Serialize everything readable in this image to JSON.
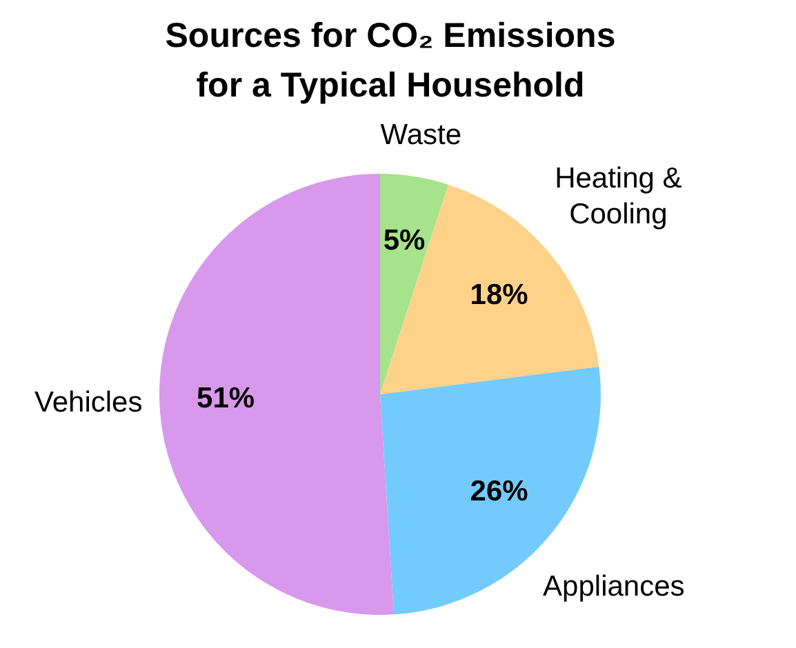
{
  "chart_data": {
    "type": "pie",
    "title": "Sources for CO₂ Emissions for a Typical Household",
    "categories": [
      "Waste",
      "Heating & Cooling",
      "Appliances",
      "Vehicles"
    ],
    "values": [
      5,
      18,
      26,
      51
    ],
    "value_labels": [
      "5%",
      "18%",
      "26%",
      "51%"
    ],
    "colors": [
      "#a6e38a",
      "#ffd28a",
      "#73cbfd",
      "#d898ec"
    ],
    "legend": false
  }
}
